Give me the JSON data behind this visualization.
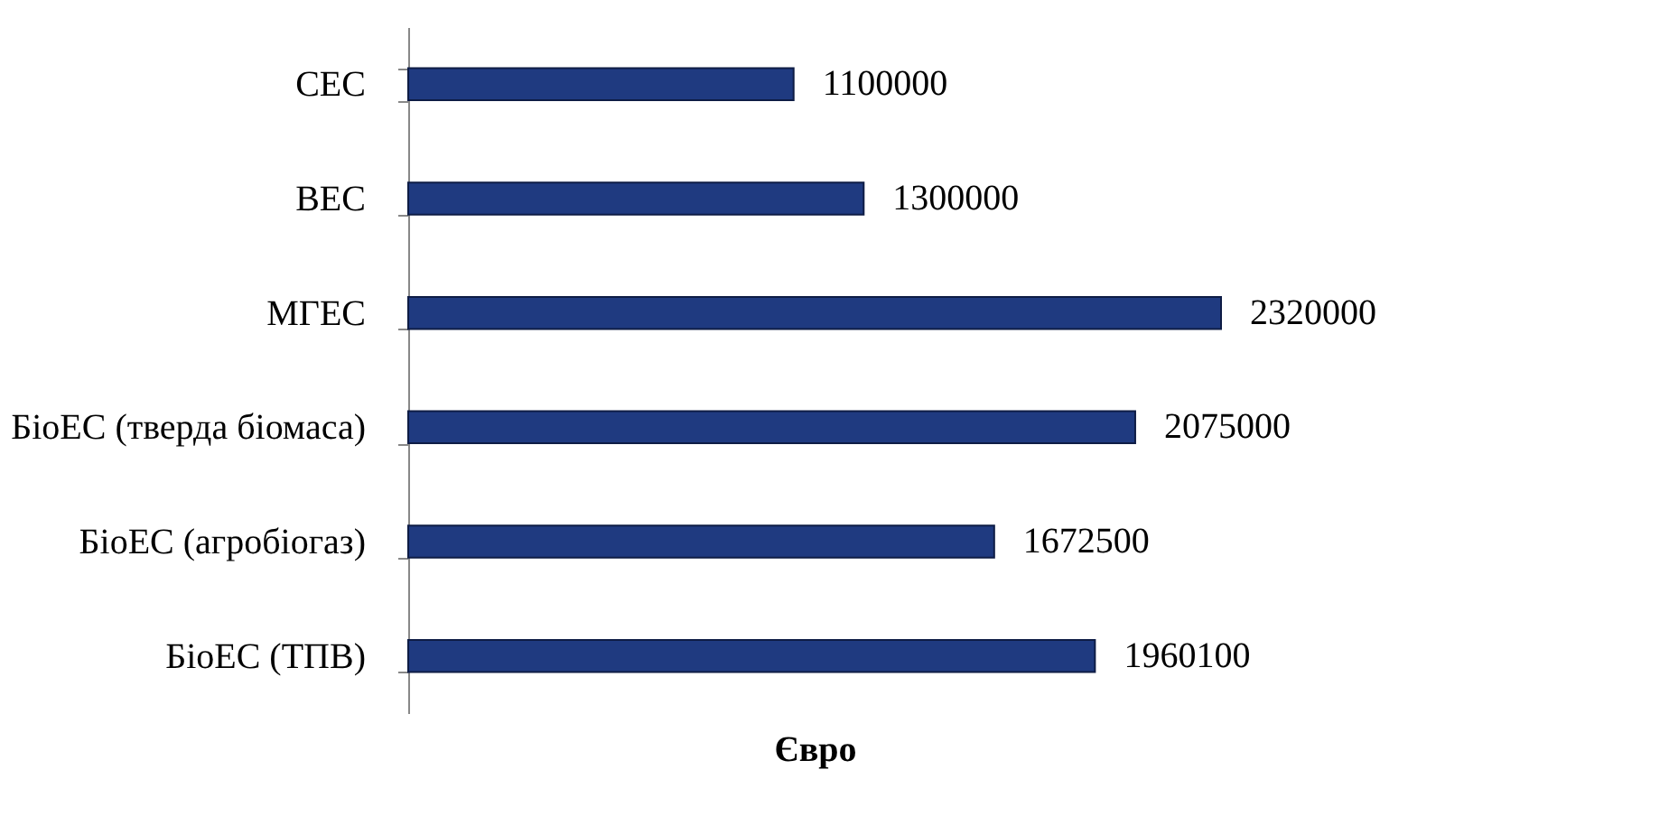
{
  "chart_data": {
    "type": "bar",
    "orientation": "horizontal",
    "xlabel": "Євро",
    "categories": [
      "СЕС",
      "ВЕС",
      "МГЕС",
      "БіоЕС (тверда біомаса)",
      "БіоЕС (агробіогаз)",
      "БіоЕС (ТПВ)"
    ],
    "values": [
      1100000,
      1300000,
      2320000,
      2075000,
      1672500,
      1960100
    ],
    "color": "#1f3a80",
    "data_labels": true,
    "grid": false
  }
}
